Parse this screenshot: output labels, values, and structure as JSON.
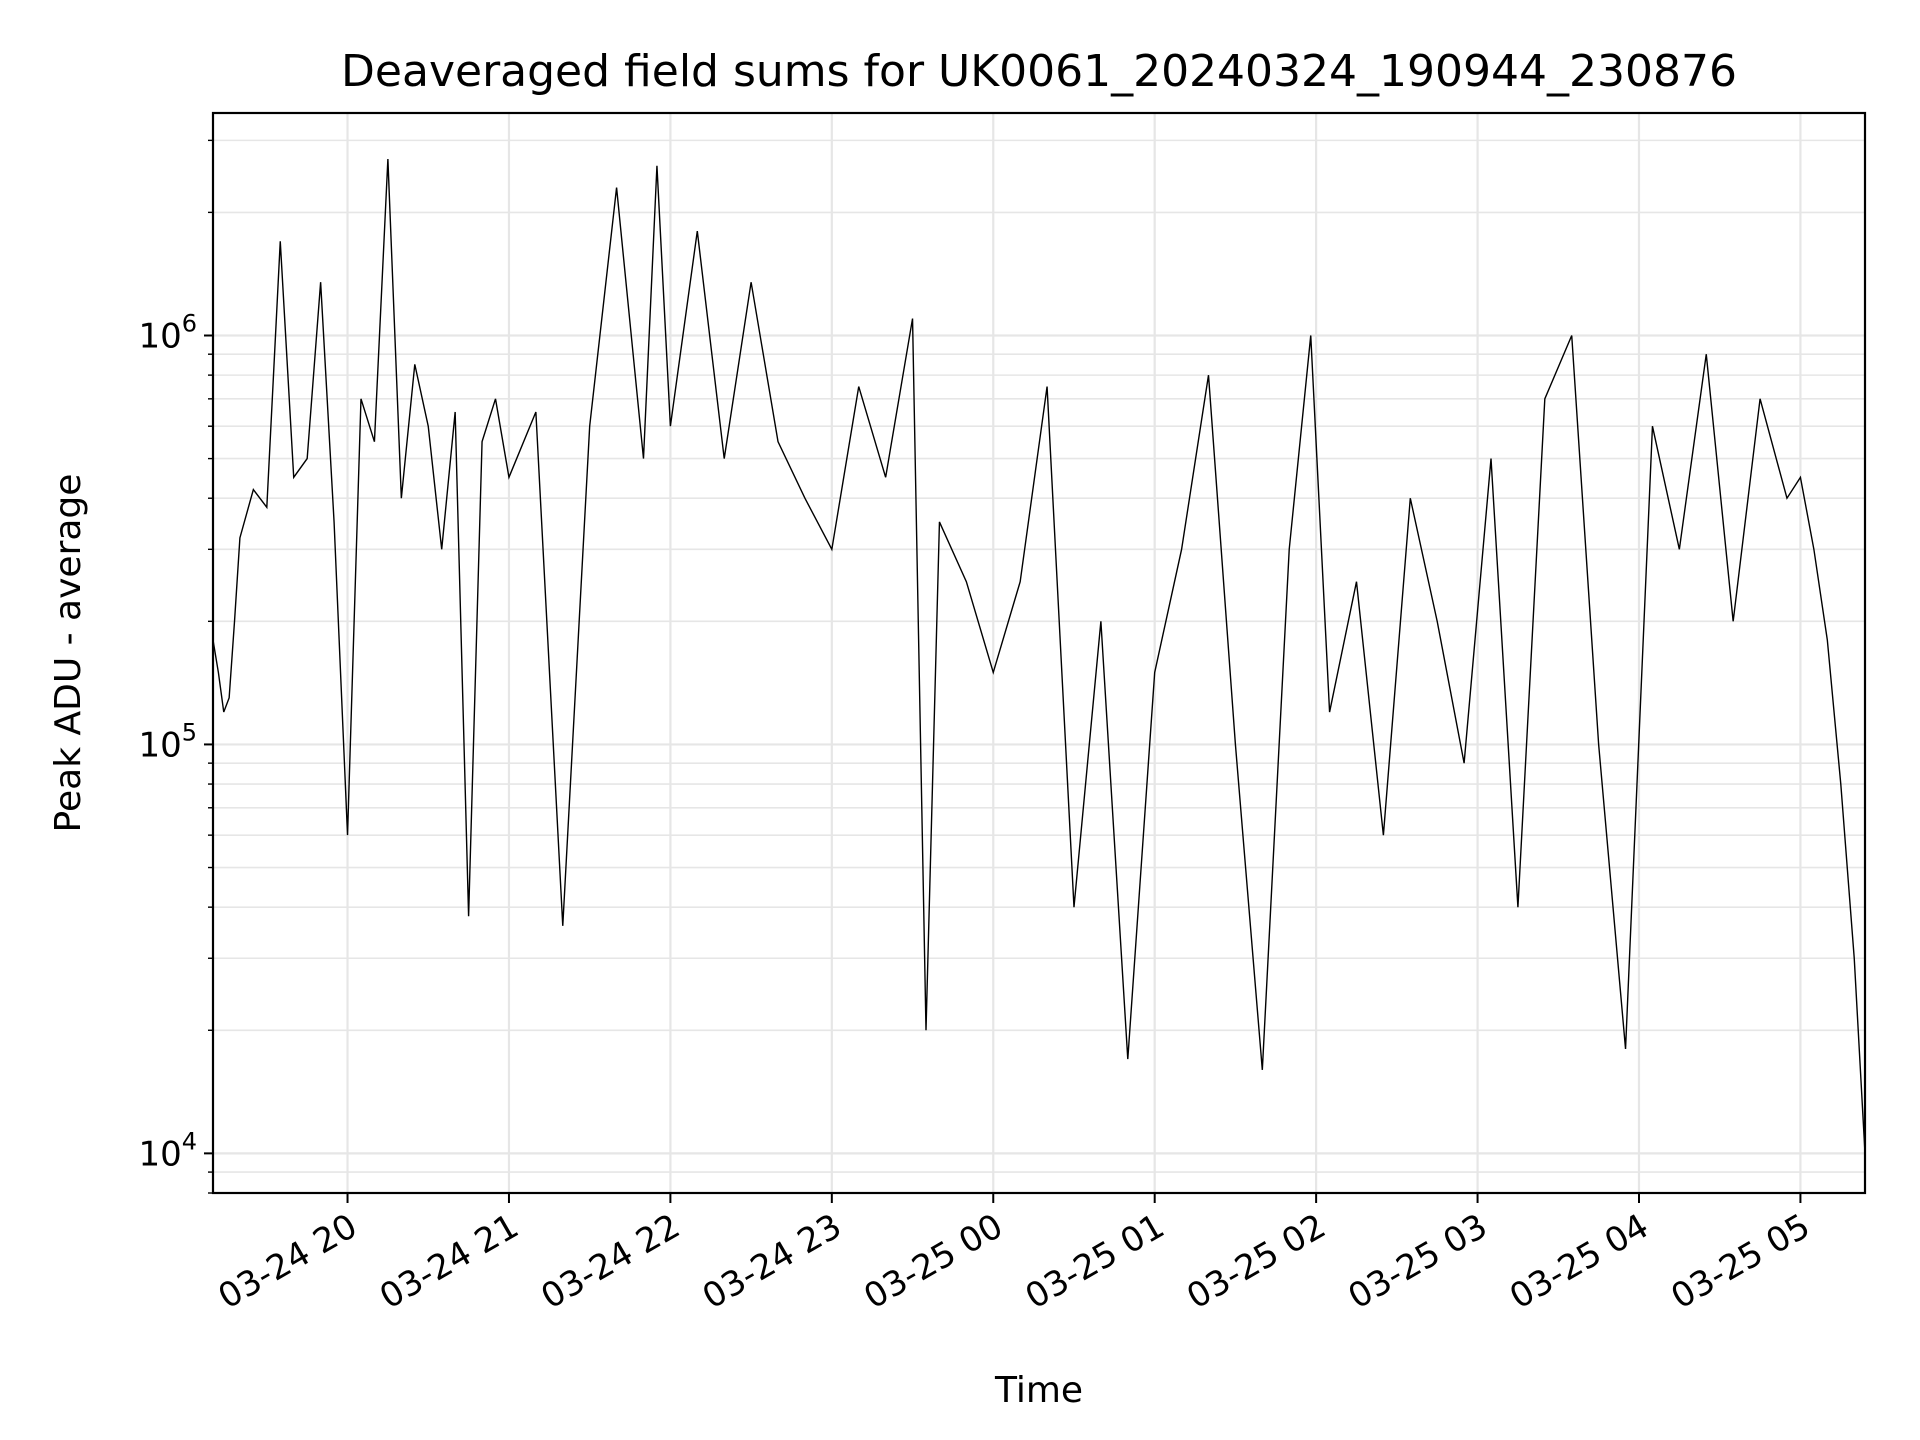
{
  "chart_data": {
    "type": "line",
    "title": "Deaveraged field sums for UK0061_20240324_190944_230876",
    "xlabel": "Time",
    "ylabel": "Peak ADU - average",
    "yscale": "log",
    "ylim": [
      8000,
      3500000
    ],
    "xlim": [
      "2024-03-24T19:10",
      "2024-03-25T05:24"
    ],
    "grid": true,
    "line_color": "#000000",
    "grid_color": "#e6e6e6",
    "x_ticks": [
      {
        "value": "2024-03-24T20:00",
        "label": "03-24 20"
      },
      {
        "value": "2024-03-24T21:00",
        "label": "03-24 21"
      },
      {
        "value": "2024-03-24T22:00",
        "label": "03-24 22"
      },
      {
        "value": "2024-03-24T23:00",
        "label": "03-24 23"
      },
      {
        "value": "2024-03-25T00:00",
        "label": "03-25 00"
      },
      {
        "value": "2024-03-25T01:00",
        "label": "03-25 01"
      },
      {
        "value": "2024-03-25T02:00",
        "label": "03-25 02"
      },
      {
        "value": "2024-03-25T03:00",
        "label": "03-25 03"
      },
      {
        "value": "2024-03-25T04:00",
        "label": "03-25 04"
      },
      {
        "value": "2024-03-25T05:00",
        "label": "03-25 05"
      }
    ],
    "y_ticks": [
      {
        "value": 10000,
        "base": "10",
        "exp": "4"
      },
      {
        "value": 100000,
        "base": "10",
        "exp": "5"
      },
      {
        "value": 1000000,
        "base": "10",
        "exp": "6"
      }
    ],
    "series": [
      {
        "points": [
          [
            "2024-03-24T19:10",
            180000
          ],
          [
            "2024-03-24T19:12",
            150000
          ],
          [
            "2024-03-24T19:14",
            120000
          ],
          [
            "2024-03-24T19:16",
            130000
          ],
          [
            "2024-03-24T19:18",
            200000
          ],
          [
            "2024-03-24T19:20",
            320000
          ],
          [
            "2024-03-24T19:25",
            420000
          ],
          [
            "2024-03-24T19:30",
            380000
          ],
          [
            "2024-03-24T19:35",
            1700000
          ],
          [
            "2024-03-24T19:40",
            450000
          ],
          [
            "2024-03-24T19:45",
            500000
          ],
          [
            "2024-03-24T19:50",
            1350000
          ],
          [
            "2024-03-24T19:55",
            350000
          ],
          [
            "2024-03-24T20:00",
            60000
          ],
          [
            "2024-03-24T20:05",
            700000
          ],
          [
            "2024-03-24T20:10",
            550000
          ],
          [
            "2024-03-24T20:15",
            2700000
          ],
          [
            "2024-03-24T20:20",
            400000
          ],
          [
            "2024-03-24T20:25",
            850000
          ],
          [
            "2024-03-24T20:30",
            600000
          ],
          [
            "2024-03-24T20:35",
            300000
          ],
          [
            "2024-03-24T20:40",
            650000
          ],
          [
            "2024-03-24T20:45",
            38000
          ],
          [
            "2024-03-24T20:50",
            550000
          ],
          [
            "2024-03-24T20:55",
            700000
          ],
          [
            "2024-03-24T21:00",
            450000
          ],
          [
            "2024-03-24T21:10",
            650000
          ],
          [
            "2024-03-24T21:20",
            36000
          ],
          [
            "2024-03-24T21:30",
            600000
          ],
          [
            "2024-03-24T21:40",
            2300000
          ],
          [
            "2024-03-24T21:50",
            500000
          ],
          [
            "2024-03-24T21:55",
            2600000
          ],
          [
            "2024-03-24T22:00",
            600000
          ],
          [
            "2024-03-24T22:10",
            1800000
          ],
          [
            "2024-03-24T22:20",
            500000
          ],
          [
            "2024-03-24T22:30",
            1350000
          ],
          [
            "2024-03-24T22:40",
            550000
          ],
          [
            "2024-03-24T22:50",
            400000
          ],
          [
            "2024-03-24T23:00",
            300000
          ],
          [
            "2024-03-24T23:10",
            750000
          ],
          [
            "2024-03-24T23:20",
            450000
          ],
          [
            "2024-03-24T23:30",
            1100000
          ],
          [
            "2024-03-24T23:35",
            20000
          ],
          [
            "2024-03-24T23:40",
            350000
          ],
          [
            "2024-03-24T23:50",
            250000
          ],
          [
            "2024-03-25T00:00",
            150000
          ],
          [
            "2024-03-25T00:10",
            250000
          ],
          [
            "2024-03-25T00:20",
            750000
          ],
          [
            "2024-03-25T00:30",
            40000
          ],
          [
            "2024-03-25T00:40",
            200000
          ],
          [
            "2024-03-25T00:50",
            17000
          ],
          [
            "2024-03-25T01:00",
            150000
          ],
          [
            "2024-03-25T01:10",
            300000
          ],
          [
            "2024-03-25T01:20",
            800000
          ],
          [
            "2024-03-25T01:30",
            100000
          ],
          [
            "2024-03-25T01:40",
            16000
          ],
          [
            "2024-03-25T01:50",
            300000
          ],
          [
            "2024-03-25T01:58",
            1000000
          ],
          [
            "2024-03-25T02:05",
            120000
          ],
          [
            "2024-03-25T02:15",
            250000
          ],
          [
            "2024-03-25T02:25",
            60000
          ],
          [
            "2024-03-25T02:35",
            400000
          ],
          [
            "2024-03-25T02:45",
            200000
          ],
          [
            "2024-03-25T02:55",
            90000
          ],
          [
            "2024-03-25T03:05",
            500000
          ],
          [
            "2024-03-25T03:15",
            40000
          ],
          [
            "2024-03-25T03:25",
            700000
          ],
          [
            "2024-03-25T03:35",
            1000000
          ],
          [
            "2024-03-25T03:45",
            100000
          ],
          [
            "2024-03-25T03:55",
            18000
          ],
          [
            "2024-03-25T04:05",
            600000
          ],
          [
            "2024-03-25T04:15",
            300000
          ],
          [
            "2024-03-25T04:25",
            900000
          ],
          [
            "2024-03-25T04:35",
            200000
          ],
          [
            "2024-03-25T04:45",
            700000
          ],
          [
            "2024-03-25T04:55",
            400000
          ],
          [
            "2024-03-25T05:00",
            450000
          ],
          [
            "2024-03-25T05:05",
            300000
          ],
          [
            "2024-03-25T05:10",
            180000
          ],
          [
            "2024-03-25T05:15",
            80000
          ],
          [
            "2024-03-25T05:20",
            30000
          ],
          [
            "2024-03-25T05:24",
            10000
          ]
        ]
      }
    ]
  }
}
